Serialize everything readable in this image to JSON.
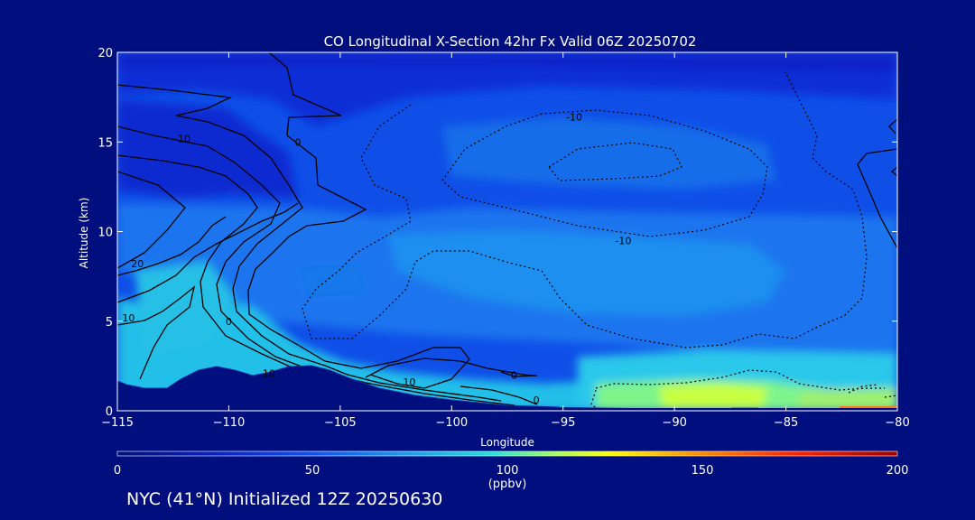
{
  "chart_data": {
    "type": "heatmap",
    "title": "CO Longitudinal X-Section 42hr  Fx Valid 06Z 20250702",
    "xlabel": "Longitude",
    "ylabel": "Altitude (km)",
    "xlim": [
      -115,
      -80
    ],
    "ylim": [
      0,
      20
    ],
    "x_ticks": [
      -115,
      -110,
      -105,
      -100,
      -95,
      -90,
      -85,
      -80
    ],
    "y_ticks": [
      0,
      5,
      10,
      15,
      20
    ],
    "x_tick_labels": [
      "−115",
      "−110",
      "−105",
      "−100",
      "−95",
      "−90",
      "−85",
      "−80"
    ],
    "y_tick_labels": [
      "0",
      "5",
      "10",
      "15",
      "20"
    ],
    "grid": false,
    "colorbar": {
      "min": 0,
      "max": 200,
      "ticks": [
        0,
        50,
        100,
        150,
        200
      ],
      "tick_labels": [
        "0",
        "50",
        "100",
        "150",
        "200"
      ],
      "units": "(ppbv)",
      "colors": [
        "#010f7e",
        "#0a1fc4",
        "#1050f0",
        "#1aa0f0",
        "#20e0e0",
        "#a0ff60",
        "#ffff00",
        "#ff9000",
        "#ff2000",
        "#a00000"
      ]
    },
    "contour_labels": [
      {
        "text": "10",
        "x": -112.0,
        "y": 15.2
      },
      {
        "text": "0",
        "x": -106.9,
        "y": 15.0
      },
      {
        "text": "20",
        "x": -114.1,
        "y": 8.2
      },
      {
        "text": "10",
        "x": -114.5,
        "y": 5.2
      },
      {
        "text": "0",
        "x": -110.0,
        "y": 5.0
      },
      {
        "text": "10",
        "x": -108.2,
        "y": 2.1
      },
      {
        "text": "10",
        "x": -101.9,
        "y": 1.6
      },
      {
        "text": "0",
        "x": -97.2,
        "y": 2.0
      },
      {
        "text": "0",
        "x": -96.2,
        "y": 0.6
      },
      {
        "text": "-10",
        "x": -94.5,
        "y": 16.4
      },
      {
        "text": "-10",
        "x": -92.3,
        "y": 9.5
      }
    ]
  },
  "colors": {
    "background": "#010f7e",
    "terrain": "#010f7e",
    "text": "#ffffff"
  },
  "footer": "NYC (41°N) Initialized 12Z 20250630"
}
